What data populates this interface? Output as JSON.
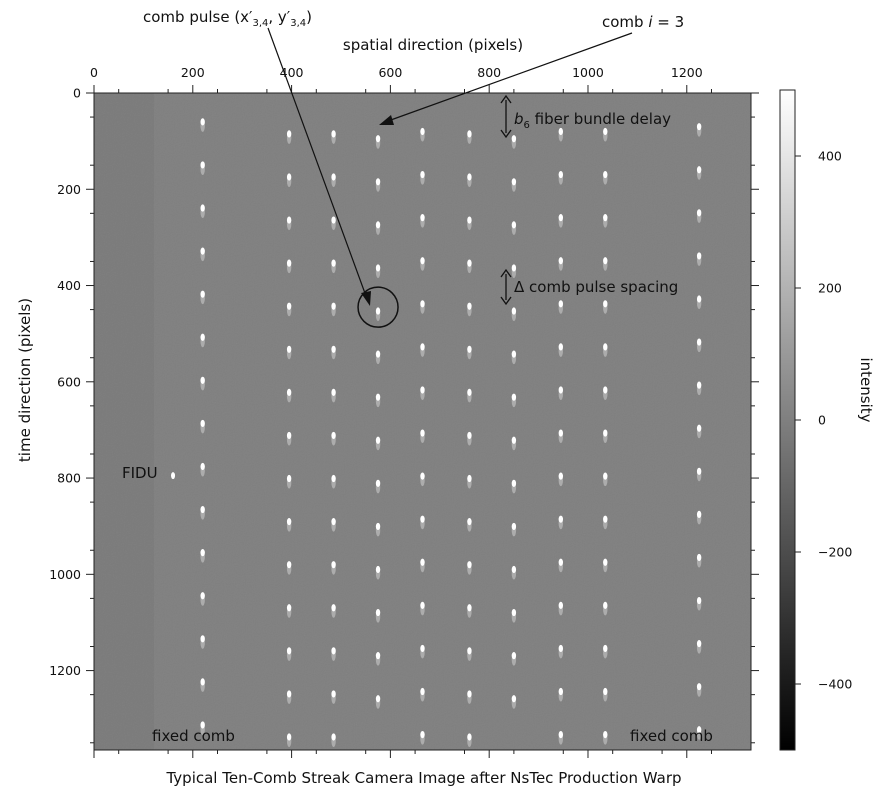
{
  "chart_data": {
    "type": "heatmap",
    "title": "Typical Ten-Comb Streak Camera Image after NsTec Production Warp",
    "xlabel": "spatial direction (pixels)",
    "ylabel": "time direction (pixels)",
    "colorbar_label": "intensity",
    "xlim": [
      0,
      1330
    ],
    "ylim": [
      1365,
      0
    ],
    "x_ticks": [
      0,
      200,
      400,
      600,
      800,
      1000,
      1200
    ],
    "y_ticks": [
      0,
      200,
      400,
      600,
      800,
      1000,
      1200
    ],
    "colorbar_range": [
      -500,
      500
    ],
    "colorbar_ticks": [
      {
        "value": 400,
        "label": "400"
      },
      {
        "value": 200,
        "label": "200"
      },
      {
        "value": 0,
        "label": "0"
      },
      {
        "value": -200,
        "label": "−200"
      },
      {
        "value": -400,
        "label": "−400"
      }
    ],
    "colormap": "grayscale",
    "comb_x": [
      220,
      395,
      485,
      575,
      665,
      760,
      850,
      945,
      1035,
      1225
    ],
    "comb_top_y": [
      60,
      85,
      85,
      95,
      80,
      85,
      95,
      80,
      80,
      70
    ],
    "pulse_spacing": 89.5,
    "pulse_count": 15,
    "fidu": {
      "x": 160,
      "y": 795
    },
    "circle": {
      "x": 575,
      "y": 445
    },
    "annotations": {
      "comb_pulse": "comb pulse (x′",
      "comb_pulse_sub1": "3,4",
      "comb_pulse_mid": ", y′",
      "comb_pulse_sub2": "3,4",
      "comb_pulse_end": ")",
      "comb_i_prefix": "comb ",
      "comb_i_var": "i",
      "comb_i_suffix": " = 3",
      "b6_var": "b",
      "b6_sub": "6",
      "b6_suffix": " fiber bundle delay",
      "delta_spacing": "Δ comb pulse spacing",
      "fidu_label": "FIDU",
      "fixed_comb_left": "fixed comb",
      "fixed_comb_right": "fixed comb"
    }
  }
}
